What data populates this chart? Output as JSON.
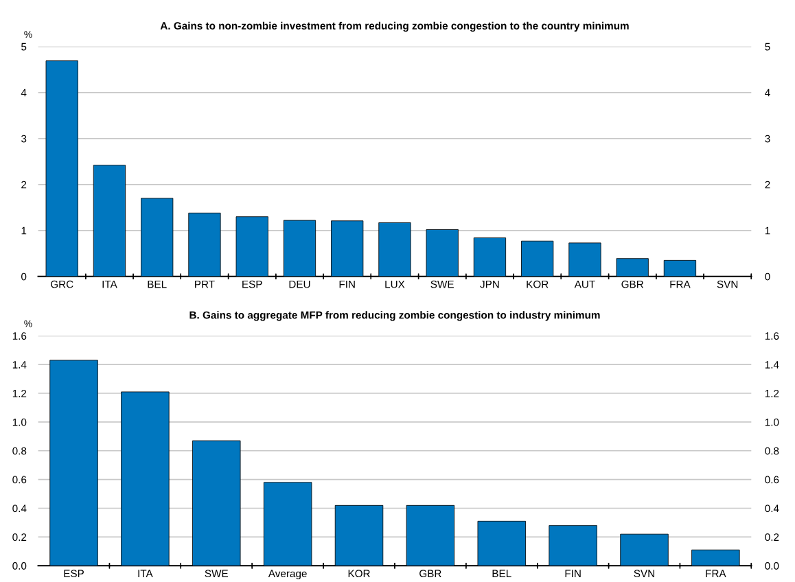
{
  "chart_data": [
    {
      "type": "bar",
      "title": "A. Gains to non-zombie investment from reducing zombie congestion to the country minimum",
      "ylabel": "%",
      "categories": [
        "GRC",
        "ITA",
        "BEL",
        "PRT",
        "ESP",
        "DEU",
        "FIN",
        "LUX",
        "SWE",
        "JPN",
        "KOR",
        "AUT",
        "GBR",
        "FRA",
        "SVN"
      ],
      "values": [
        4.69,
        2.42,
        1.7,
        1.38,
        1.3,
        1.22,
        1.21,
        1.17,
        1.02,
        0.84,
        0.77,
        0.73,
        0.39,
        0.35,
        0
      ],
      "color": "#0077bf",
      "ylim": [
        0,
        5
      ],
      "yticks": [
        0,
        1,
        2,
        3,
        4,
        5
      ],
      "y2lim": [
        0,
        5
      ],
      "y2ticks": [
        0,
        1,
        2,
        3,
        4,
        5
      ],
      "grid": "y"
    },
    {
      "type": "bar",
      "title": "B. Gains to aggregate MFP from reducing zombie congestion to industry minimum",
      "ylabel": "%",
      "categories": [
        "ESP",
        "ITA",
        "SWE",
        "Average",
        "KOR",
        "GBR",
        "BEL",
        "FIN",
        "SVN",
        "FRA"
      ],
      "values": [
        1.43,
        1.21,
        0.87,
        0.58,
        0.42,
        0.42,
        0.31,
        0.28,
        0.22,
        0.11
      ],
      "color": "#0077bf",
      "ylim": [
        0,
        1.6
      ],
      "yticks": [
        {
          "value": 0,
          "label": "0.0"
        },
        0.2,
        0.4,
        0.6,
        0.8,
        {
          "value": 1,
          "label": "1.0"
        },
        1.2,
        1.4,
        1.6
      ],
      "y2lim": [
        0,
        1.6
      ],
      "y2ticks": [
        {
          "value": 0,
          "label": "0.0"
        },
        0.2,
        0.4,
        0.6,
        0.8,
        {
          "value": 1,
          "label": "1.0"
        },
        1.2,
        1.4,
        1.6
      ],
      "grid": "y"
    }
  ]
}
